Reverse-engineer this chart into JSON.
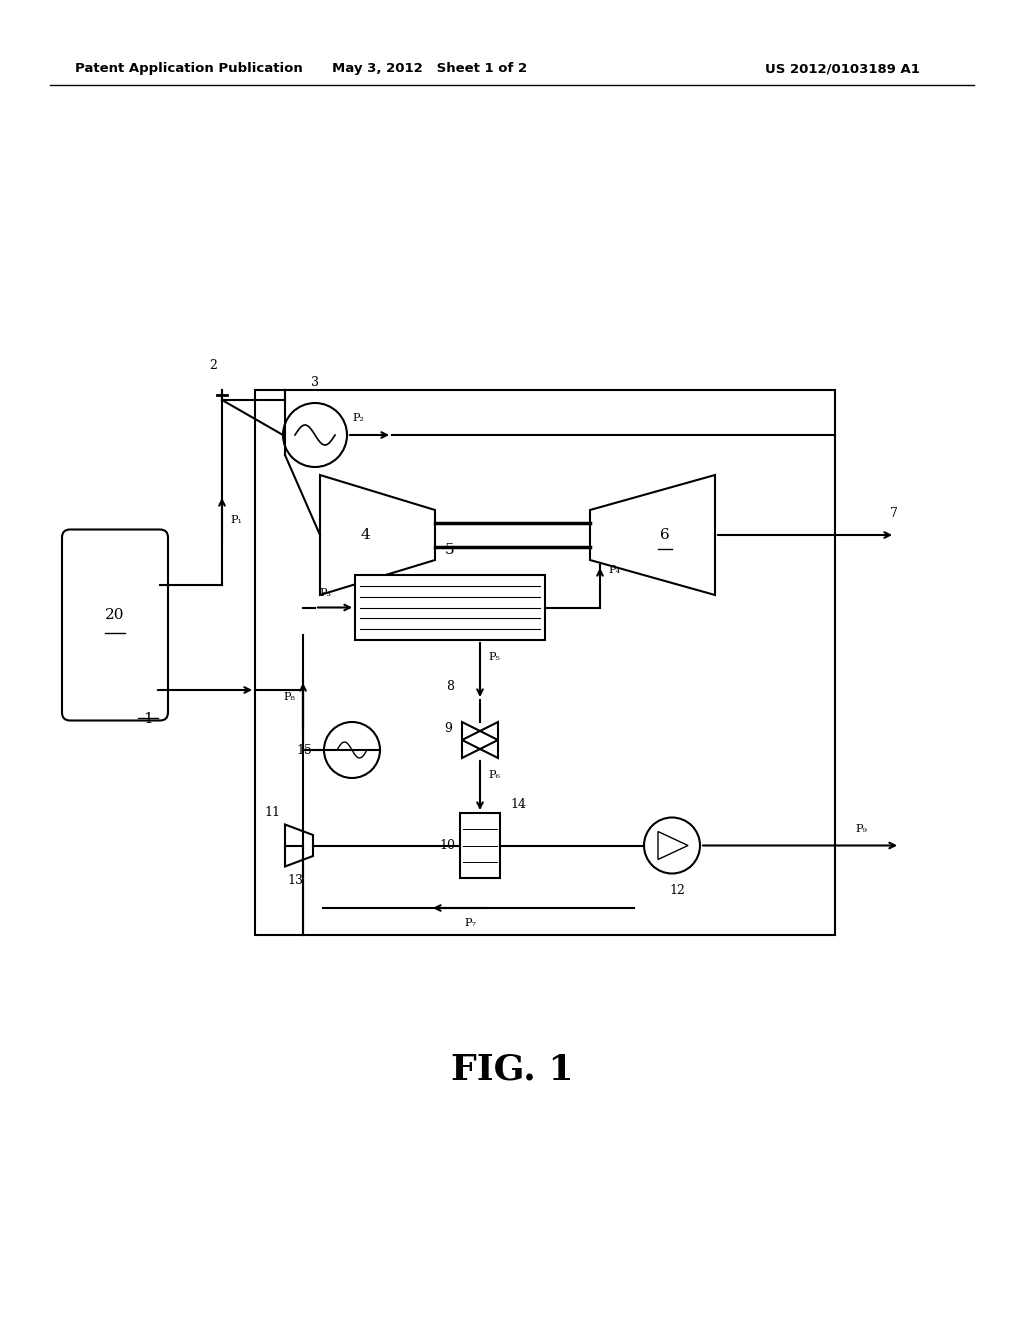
{
  "background_color": "#ffffff",
  "header_left": "Patent Application Publication",
  "header_center": "May 3, 2012   Sheet 1 of 2",
  "header_right": "US 2012/0103189 A1",
  "figure_label": "FIG. 1"
}
